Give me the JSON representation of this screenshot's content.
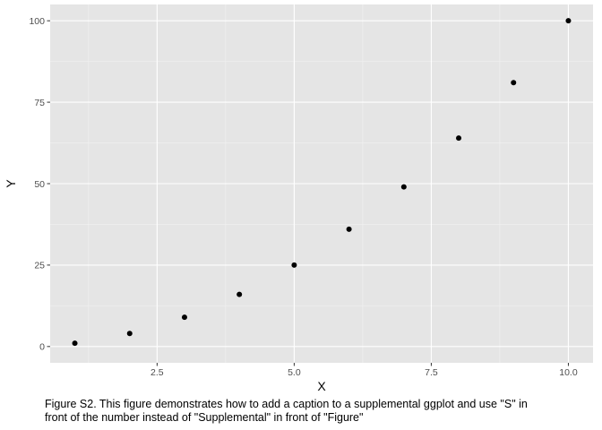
{
  "chart_data": {
    "type": "scatter",
    "x": [
      1,
      2,
      3,
      4,
      5,
      6,
      7,
      8,
      9,
      10
    ],
    "y": [
      1,
      4,
      9,
      16,
      25,
      36,
      49,
      64,
      81,
      100
    ],
    "xlabel": "X",
    "ylabel": "Y",
    "xlim": [
      0.55,
      10.45
    ],
    "ylim": [
      -5,
      105
    ],
    "xticks": [
      2.5,
      5.0,
      7.5,
      10.0
    ],
    "xtick_labels": [
      "2.5",
      "5.0",
      "7.5",
      "10.0"
    ],
    "yticks": [
      0,
      25,
      50,
      75,
      100
    ],
    "ytick_labels": [
      "0",
      "25",
      "50",
      "75",
      "100"
    ],
    "grid": true,
    "colors": {
      "panel": "#e5e5e5",
      "grid_major": "#ffffff",
      "grid_minor": "#f2f2f2",
      "point": "#000000"
    }
  },
  "caption": "Figure S2. This figure demonstrates how to add a caption to a supplemental ggplot and use \"S\" in\nfront of the number instead of \"Supplemental\" in front of \"Figure\""
}
